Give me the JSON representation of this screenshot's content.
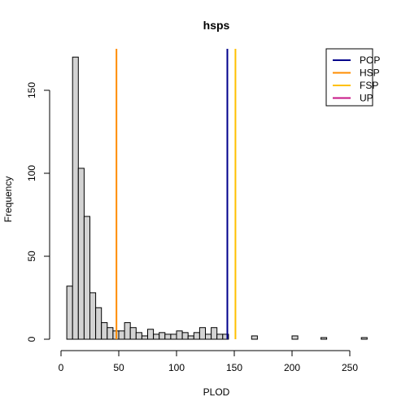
{
  "chart_data": {
    "type": "bar",
    "title": "hsps",
    "xlabel": "PLOD",
    "ylabel": "Frequency",
    "xlim": [
      0,
      270
    ],
    "ylim": [
      0,
      175
    ],
    "x_ticks": [
      0,
      50,
      100,
      150,
      200,
      250
    ],
    "y_ticks": [
      0,
      50,
      100,
      150
    ],
    "bin_width": 5,
    "bins_start": 5,
    "counts": [
      32,
      170,
      103,
      74,
      28,
      19,
      10,
      7,
      5,
      5,
      10,
      7,
      4,
      2,
      6,
      3,
      4,
      3,
      3,
      5,
      4,
      2,
      4,
      7,
      3,
      7,
      3,
      3,
      0,
      0,
      0,
      0,
      2,
      0,
      0,
      0,
      0,
      0,
      0,
      2,
      0,
      0,
      0,
      0,
      1,
      0,
      0,
      0,
      0,
      0,
      0,
      1
    ],
    "bar_fill": "#d3d3d3",
    "bar_stroke": "#000000",
    "vlines": [
      {
        "name": "POP",
        "x": 144,
        "color": "#00008b"
      },
      {
        "name": "HSP",
        "x": 48,
        "color": "#ff8c00"
      },
      {
        "name": "FSP",
        "x": 151,
        "color": "#ffc000"
      },
      {
        "name": "UP",
        "color": "#c71585"
      }
    ],
    "legend": {
      "position": "top-right",
      "entries": [
        {
          "label": "POP",
          "color": "#00008b"
        },
        {
          "label": "HSP",
          "color": "#ff8c00"
        },
        {
          "label": "FSP",
          "color": "#ffc000"
        },
        {
          "label": "UP",
          "color": "#c71585"
        }
      ]
    },
    "grid": false
  }
}
